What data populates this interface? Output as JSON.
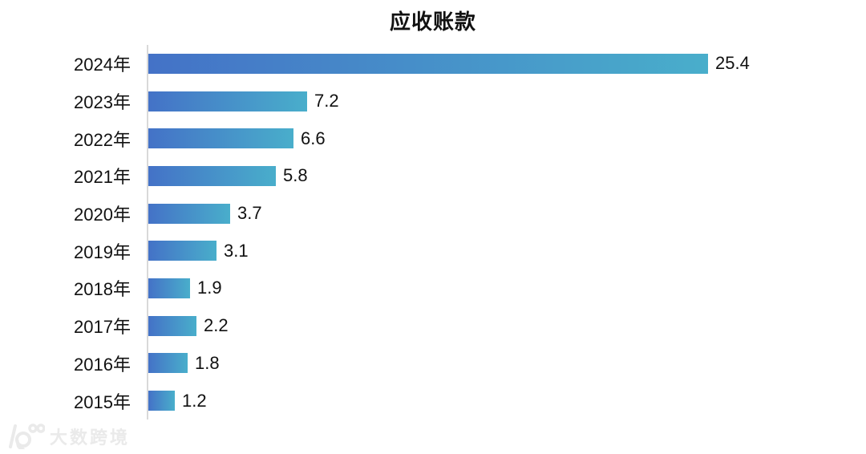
{
  "title": "应收账款",
  "chart_data": {
    "type": "bar",
    "orientation": "horizontal",
    "title": "应收账款",
    "categories": [
      "2024年",
      "2023年",
      "2022年",
      "2021年",
      "2020年",
      "2019年",
      "2018年",
      "2017年",
      "2016年",
      "2015年"
    ],
    "values": [
      25.4,
      7.2,
      6.6,
      5.8,
      3.7,
      3.1,
      1.9,
      2.2,
      1.8,
      1.2
    ],
    "value_labels": [
      "25.4",
      "7.2",
      "6.6",
      "5.8",
      "3.7",
      "3.1",
      "1.9",
      "2.2",
      "1.8",
      "1.2"
    ],
    "xlabel": "",
    "ylabel": "",
    "legend": false,
    "grid": false,
    "data_labels": true,
    "bar_gradient_start": "#4472C7",
    "bar_gradient_end": "#49AECB",
    "axis_line_color": "#D9D9D9",
    "text_color": "#111111"
  },
  "watermark": {
    "logo": "dashukuajing-logo",
    "text": "大数跨境",
    "color": "#EAEAEA"
  }
}
